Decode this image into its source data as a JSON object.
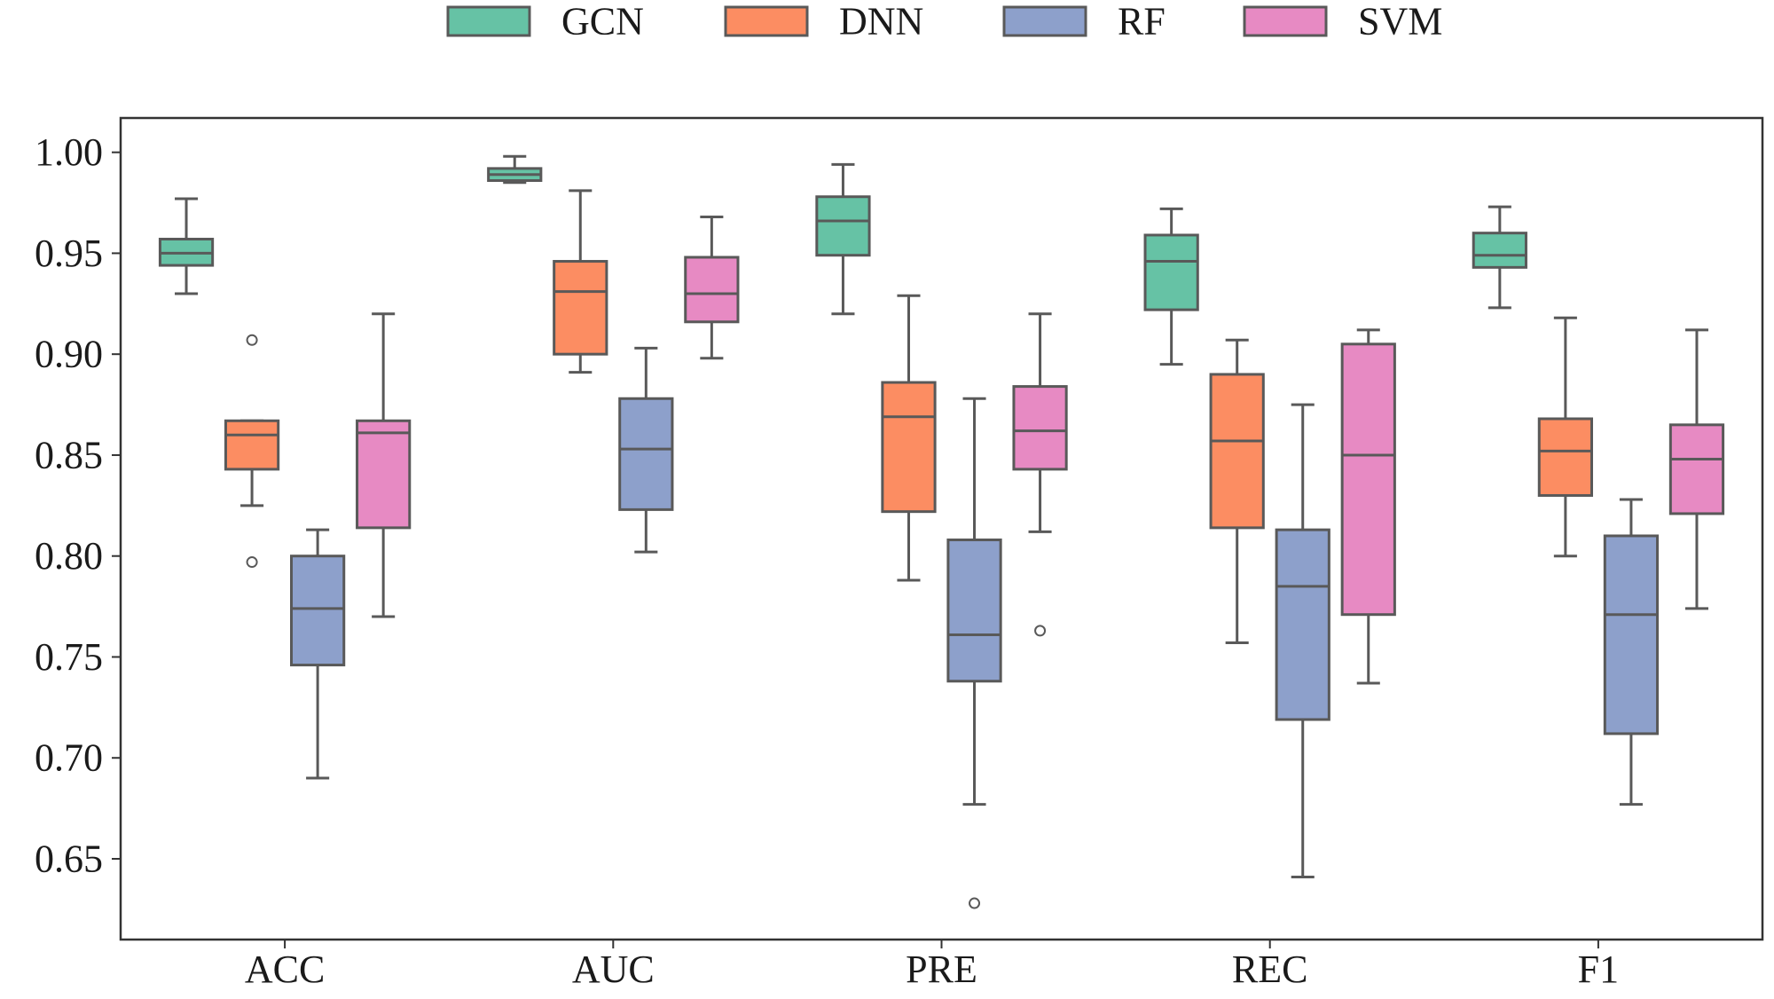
{
  "chart_data": {
    "type": "box",
    "title": "",
    "xlabel": "",
    "ylabel": "",
    "categories": [
      "ACC",
      "AUC",
      "PRE",
      "REC",
      "F1"
    ],
    "ylim": [
      0.61,
      1.017
    ],
    "yticks": [
      1.0,
      0.95,
      0.9,
      0.85,
      0.8,
      0.75,
      0.7,
      0.65
    ],
    "ytick_labels": [
      "1.00",
      "0.95",
      "0.90",
      "0.85",
      "0.80",
      "0.75",
      "0.70",
      "0.65"
    ],
    "legend_position": "top-center",
    "series": [
      {
        "name": "GCN",
        "color": "#66c2a5",
        "boxes": [
          {
            "whislo": 0.93,
            "q1": 0.944,
            "med": 0.95,
            "q3": 0.957,
            "whishi": 0.977,
            "fliers": []
          },
          {
            "whislo": 0.985,
            "q1": 0.986,
            "med": 0.989,
            "q3": 0.992,
            "whishi": 0.998,
            "fliers": []
          },
          {
            "whislo": 0.92,
            "q1": 0.949,
            "med": 0.966,
            "q3": 0.978,
            "whishi": 0.994,
            "fliers": []
          },
          {
            "whislo": 0.895,
            "q1": 0.922,
            "med": 0.946,
            "q3": 0.959,
            "whishi": 0.972,
            "fliers": []
          },
          {
            "whislo": 0.923,
            "q1": 0.943,
            "med": 0.949,
            "q3": 0.96,
            "whishi": 0.973,
            "fliers": []
          }
        ]
      },
      {
        "name": "DNN",
        "color": "#fc8d62",
        "boxes": [
          {
            "whislo": 0.825,
            "q1": 0.843,
            "med": 0.86,
            "q3": 0.867,
            "whishi": 0.867,
            "fliers": [
              0.907,
              0.797
            ]
          },
          {
            "whislo": 0.891,
            "q1": 0.9,
            "med": 0.931,
            "q3": 0.946,
            "whishi": 0.981,
            "fliers": []
          },
          {
            "whislo": 0.788,
            "q1": 0.822,
            "med": 0.869,
            "q3": 0.886,
            "whishi": 0.929,
            "fliers": []
          },
          {
            "whislo": 0.757,
            "q1": 0.814,
            "med": 0.857,
            "q3": 0.89,
            "whishi": 0.907,
            "fliers": []
          },
          {
            "whislo": 0.8,
            "q1": 0.83,
            "med": 0.852,
            "q3": 0.868,
            "whishi": 0.918,
            "fliers": []
          }
        ]
      },
      {
        "name": "RF",
        "color": "#8da0cb",
        "boxes": [
          {
            "whislo": 0.69,
            "q1": 0.746,
            "med": 0.774,
            "q3": 0.8,
            "whishi": 0.813,
            "fliers": []
          },
          {
            "whislo": 0.802,
            "q1": 0.823,
            "med": 0.853,
            "q3": 0.878,
            "whishi": 0.903,
            "fliers": []
          },
          {
            "whislo": 0.677,
            "q1": 0.738,
            "med": 0.761,
            "q3": 0.808,
            "whishi": 0.878,
            "fliers": [
              0.628
            ]
          },
          {
            "whislo": 0.641,
            "q1": 0.719,
            "med": 0.785,
            "q3": 0.813,
            "whishi": 0.875,
            "fliers": []
          },
          {
            "whislo": 0.677,
            "q1": 0.712,
            "med": 0.771,
            "q3": 0.81,
            "whishi": 0.828,
            "fliers": []
          }
        ]
      },
      {
        "name": "SVM",
        "color": "#e78ac3",
        "boxes": [
          {
            "whislo": 0.77,
            "q1": 0.814,
            "med": 0.861,
            "q3": 0.867,
            "whishi": 0.92,
            "fliers": []
          },
          {
            "whislo": 0.898,
            "q1": 0.916,
            "med": 0.93,
            "q3": 0.948,
            "whishi": 0.968,
            "fliers": []
          },
          {
            "whislo": 0.812,
            "q1": 0.843,
            "med": 0.862,
            "q3": 0.884,
            "whishi": 0.92,
            "fliers": [
              0.763
            ]
          },
          {
            "whislo": 0.737,
            "q1": 0.771,
            "med": 0.85,
            "q3": 0.905,
            "whishi": 0.912,
            "fliers": []
          },
          {
            "whislo": 0.774,
            "q1": 0.821,
            "med": 0.848,
            "q3": 0.865,
            "whishi": 0.912,
            "fliers": []
          }
        ]
      }
    ]
  }
}
